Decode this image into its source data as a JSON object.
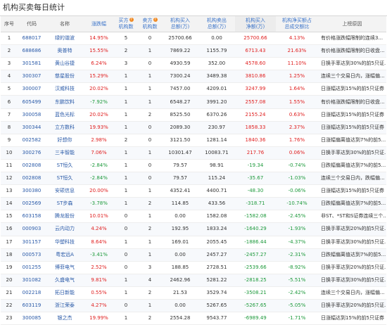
{
  "title": "机构买卖每日统计",
  "headers": {
    "seq": "序号",
    "code": "代码",
    "name": "名称",
    "chg": "涨跌幅",
    "buy_cnt_1": "买方",
    "buy_cnt_2": "机构数",
    "sell_cnt_1": "卖方",
    "sell_cnt_2": "机构数",
    "buy_amt_1": "机构买入",
    "buy_amt_2": "总额(万)",
    "sell_amt_1": "机构卖出",
    "sell_amt_2": "总额(万)",
    "net_1": "机构买入",
    "net_2": "净额(万)",
    "ratio_1": "机构净买额占",
    "ratio_2": "总成交额比",
    "reason": "上榜原因",
    "info_icon": "?"
  },
  "colors": {
    "up": "#e02020",
    "down": "#1e9a3c",
    "link": "#2a5aa8",
    "header_accent": "#3a73c9",
    "info_icon": "#f08a24"
  },
  "rows": [
    {
      "seq": "1",
      "code": "688017",
      "name": "绿的谐波",
      "chg": "14.95%",
      "buy_cnt": "5",
      "sell_cnt": "0",
      "buy_amt": "25700.66",
      "sell_amt": "0.00",
      "net": "25700.66",
      "ratio": "4.13%",
      "reason": "有价格涨跌幅限制的连续3..."
    },
    {
      "seq": "2",
      "code": "688686",
      "name": "奥普特",
      "chg": "15.55%",
      "buy_cnt": "2",
      "sell_cnt": "1",
      "buy_amt": "7869.22",
      "sell_amt": "1155.79",
      "net": "6713.43",
      "ratio": "21.63%",
      "reason": "有价格涨跌幅限制的日收盘..."
    },
    {
      "seq": "3",
      "code": "301581",
      "name": "黄山谷捷",
      "chg": "6.24%",
      "buy_cnt": "3",
      "sell_cnt": "0",
      "buy_amt": "4930.59",
      "sell_amt": "352.00",
      "net": "4578.60",
      "ratio": "11.10%",
      "reason": "日换手率达到30%的前5只证..."
    },
    {
      "seq": "4",
      "code": "300307",
      "name": "慈星股份",
      "chg": "15.29%",
      "buy_cnt": "1",
      "sell_cnt": "1",
      "buy_amt": "7300.24",
      "sell_amt": "3489.38",
      "net": "3810.86",
      "ratio": "1.25%",
      "reason": "连续三个交易日内，涨幅偏..."
    },
    {
      "seq": "5",
      "code": "300007",
      "name": "汉威科技",
      "chg": "20.02%",
      "buy_cnt": "1",
      "sell_cnt": "1",
      "buy_amt": "7457.00",
      "sell_amt": "4209.01",
      "net": "3247.99",
      "ratio": "1.64%",
      "reason": "日涨幅达到15%的前5只证券"
    },
    {
      "seq": "6",
      "code": "605499",
      "name": "东鹏饮料",
      "chg": "-7.92%",
      "buy_cnt": "1",
      "sell_cnt": "1",
      "buy_amt": "6548.27",
      "sell_amt": "3991.20",
      "net": "2557.08",
      "ratio": "1.55%",
      "reason": "有价格涨跌幅限制的日收盘..."
    },
    {
      "seq": "7",
      "code": "300058",
      "name": "蓝色光标",
      "chg": "20.02%",
      "buy_cnt": "1",
      "sell_cnt": "2",
      "buy_amt": "8525.50",
      "sell_amt": "6370.26",
      "net": "2155.24",
      "ratio": "0.63%",
      "reason": "日涨幅达到15%的前5只证券"
    },
    {
      "seq": "8",
      "code": "300344",
      "name": "立方数科",
      "chg": "19.93%",
      "buy_cnt": "1",
      "sell_cnt": "0",
      "buy_amt": "2089.30",
      "sell_amt": "230.97",
      "net": "1858.33",
      "ratio": "2.37%",
      "reason": "日涨幅达到15%的前5只证券"
    },
    {
      "seq": "9",
      "code": "002582",
      "name": "好想你",
      "chg": "2.98%",
      "buy_cnt": "2",
      "sell_cnt": "0",
      "buy_amt": "3121.50",
      "sell_amt": "1281.14",
      "net": "1840.36",
      "ratio": "1.76%",
      "reason": "日涨幅偏离值达到7%的前5..."
    },
    {
      "seq": "10",
      "code": "300276",
      "name": "三丰智能",
      "chg": "7.06%",
      "buy_cnt": "1",
      "sell_cnt": "1",
      "buy_amt": "10301.47",
      "sell_amt": "10083.71",
      "net": "217.76",
      "ratio": "0.06%",
      "reason": "日换手率达到30%的前5只证..."
    },
    {
      "seq": "11",
      "code": "002808",
      "name": "ST恒久",
      "chg": "-2.84%",
      "buy_cnt": "1",
      "sell_cnt": "0",
      "buy_amt": "79.57",
      "sell_amt": "98.91",
      "net": "-19.34",
      "ratio": "-0.74%",
      "reason": "日跌幅偏离值达到7%的前5..."
    },
    {
      "seq": "12",
      "code": "002808",
      "name": "ST恒久",
      "chg": "-2.84%",
      "buy_cnt": "1",
      "sell_cnt": "0",
      "buy_amt": "79.57",
      "sell_amt": "115.24",
      "net": "-35.67",
      "ratio": "-1.03%",
      "reason": "连续三个交易日内，跌幅偏..."
    },
    {
      "seq": "13",
      "code": "300380",
      "name": "安硕信息",
      "chg": "20.00%",
      "buy_cnt": "1",
      "sell_cnt": "1",
      "buy_amt": "4352.41",
      "sell_amt": "4400.71",
      "net": "-48.30",
      "ratio": "-0.06%",
      "reason": "日涨幅达到15%的前5只证券"
    },
    {
      "seq": "14",
      "code": "002569",
      "name": "ST步森",
      "chg": "-3.78%",
      "buy_cnt": "1",
      "sell_cnt": "2",
      "buy_amt": "114.85",
      "sell_amt": "433.56",
      "net": "-318.71",
      "ratio": "-10.74%",
      "reason": "日跌幅偏离值达到7%的前5..."
    },
    {
      "seq": "15",
      "code": "603158",
      "name": "腾龙股份",
      "chg": "10.01%",
      "buy_cnt": "0",
      "sell_cnt": "1",
      "buy_amt": "0.00",
      "sell_amt": "1582.08",
      "net": "-1582.08",
      "ratio": "-2.45%",
      "reason": "非ST、*ST和S证券连续三个..."
    },
    {
      "seq": "16",
      "code": "000903",
      "name": "云内动力",
      "chg": "4.24%",
      "buy_cnt": "0",
      "sell_cnt": "2",
      "buy_amt": "192.95",
      "sell_amt": "1833.24",
      "net": "-1640.29",
      "ratio": "-1.93%",
      "reason": "日换手率达到20%的前5只证..."
    },
    {
      "seq": "17",
      "code": "301157",
      "name": "华塑科技",
      "chg": "8.64%",
      "buy_cnt": "1",
      "sell_cnt": "1",
      "buy_amt": "169.01",
      "sell_amt": "2055.45",
      "net": "-1886.44",
      "ratio": "-4.37%",
      "reason": "日换手率达到30%的前5只证..."
    },
    {
      "seq": "18",
      "code": "000573",
      "name": "粤宏远A",
      "chg": "-3.41%",
      "buy_cnt": "0",
      "sell_cnt": "1",
      "buy_amt": "0.00",
      "sell_amt": "2457.27",
      "net": "-2457.27",
      "ratio": "-2.31%",
      "reason": "日跌幅偏离值达到7%的前5..."
    },
    {
      "seq": "19",
      "code": "001255",
      "name": "博菲电气",
      "chg": "2.52%",
      "buy_cnt": "0",
      "sell_cnt": "3",
      "buy_amt": "188.85",
      "sell_amt": "2728.51",
      "net": "-2539.66",
      "ratio": "-8.92%",
      "reason": "日换手率达到20%的前5只证..."
    },
    {
      "seq": "20",
      "code": "301082",
      "name": "久盛电气",
      "chg": "9.81%",
      "buy_cnt": "1",
      "sell_cnt": "4",
      "buy_amt": "2462.96",
      "sell_amt": "5281.22",
      "net": "-2818.25",
      "ratio": "-5.51%",
      "reason": "日换手率达到30%的前5只证..."
    },
    {
      "seq": "21",
      "code": "002218",
      "name": "拓日新能",
      "chg": "0.55%",
      "buy_cnt": "1",
      "sell_cnt": "2",
      "buy_amt": "21.53",
      "sell_amt": "3529.74",
      "net": "-3508.21",
      "ratio": "-2.42%",
      "reason": "连续三个交易日内，涨幅偏..."
    },
    {
      "seq": "22",
      "code": "603119",
      "name": "浙江荣泰",
      "chg": "4.27%",
      "buy_cnt": "0",
      "sell_cnt": "1",
      "buy_amt": "0.00",
      "sell_amt": "5267.65",
      "net": "-5267.65",
      "ratio": "-5.05%",
      "reason": "日换手率达到20%的前5只证..."
    },
    {
      "seq": "23",
      "code": "300085",
      "name": "银之杰",
      "chg": "19.99%",
      "buy_cnt": "1",
      "sell_cnt": "2",
      "buy_amt": "2554.28",
      "sell_amt": "9543.77",
      "net": "-6989.49",
      "ratio": "-1.71%",
      "reason": "日涨幅达到15%的前5只证券"
    }
  ]
}
